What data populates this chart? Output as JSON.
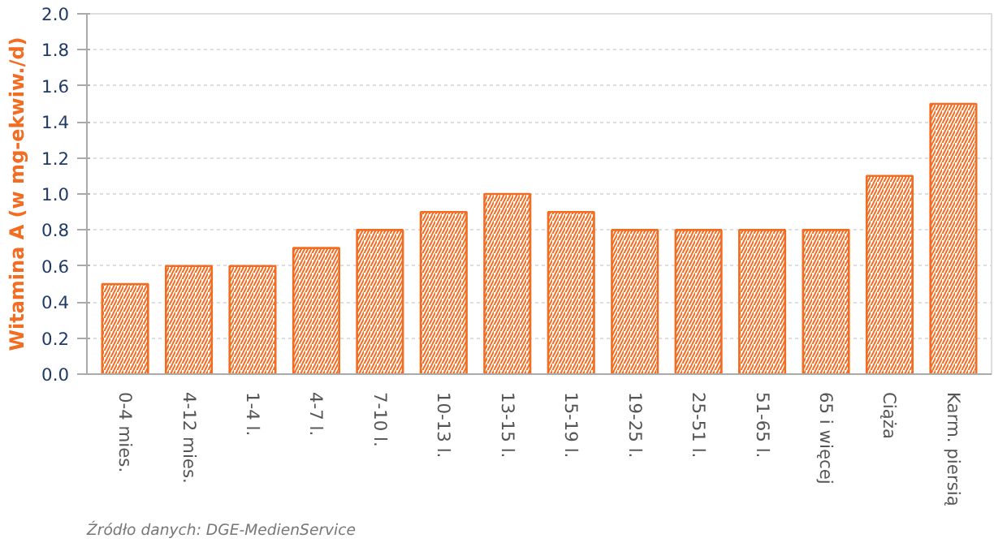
{
  "chart_data": {
    "type": "bar",
    "categories": [
      "0-4 mies.",
      "4-12 mies.",
      "1-4 l.",
      "4-7 l.",
      "7-10 l.",
      "10-13 l.",
      "13-15 l.",
      "15-19 l.",
      "19-25 l.",
      "25-51 l.",
      "51-65 l.",
      "65 i więcej",
      "Ciąża",
      "Karm. piersią"
    ],
    "values": [
      0.5,
      0.6,
      0.6,
      0.7,
      0.8,
      0.9,
      1.0,
      0.9,
      0.8,
      0.8,
      0.8,
      0.8,
      1.1,
      1.5
    ],
    "color": "#f26c21",
    "ylabel": "Witamina A (w mg-ekwiw./d)",
    "ylim": [
      0,
      2.0
    ],
    "yticks": [
      {
        "value": 0,
        "label": "0.0"
      },
      0.2,
      0.4,
      0.6,
      0.8,
      {
        "value": 1,
        "label": "1.0"
      },
      1.2,
      1.4,
      1.6,
      1.8,
      {
        "value": 2,
        "label": "2.0"
      }
    ],
    "grid": "y",
    "annotations": [
      "Źródło danych: DGE-MedienService"
    ]
  }
}
